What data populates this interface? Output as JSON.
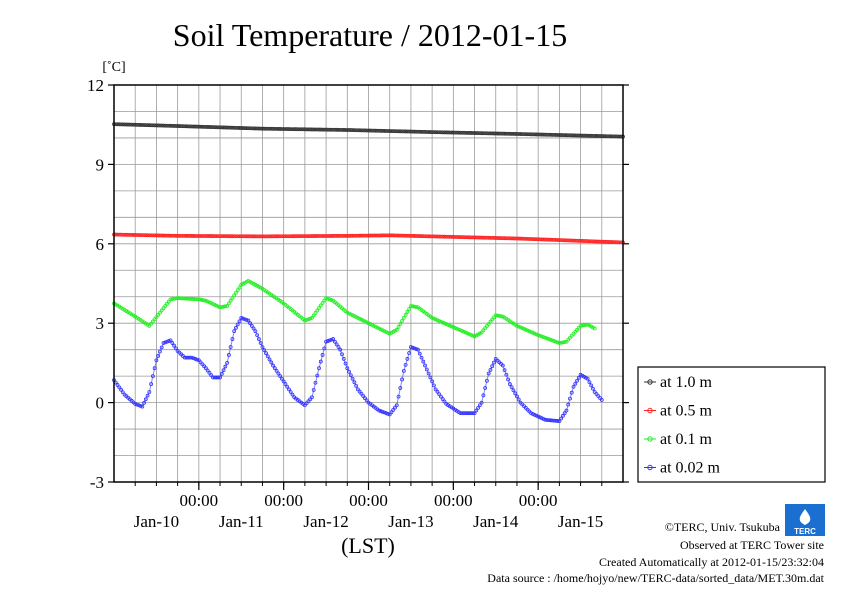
{
  "chart_data": {
    "type": "line",
    "title": "Soil Temperature / 2012-01-15",
    "ylabel": "[˚C]",
    "xlabel": "(LST)",
    "ylim": [
      -3,
      12
    ],
    "yticks": [
      -3,
      0,
      3,
      6,
      9,
      12
    ],
    "ytick_labels": [
      "-3",
      "0",
      "3",
      "6",
      "9",
      "12"
    ],
    "x_unit": "hours since Jan-09 00:00",
    "xlim": [
      12,
      156
    ],
    "x_ticks": [
      {
        "x": 36,
        "time_label": "00:00",
        "date_label": "Jan-10"
      },
      {
        "x": 60,
        "time_label": "00:00",
        "date_label": "Jan-11"
      },
      {
        "x": 84,
        "time_label": "00:00",
        "date_label": "Jan-12"
      },
      {
        "x": 108,
        "time_label": "00:00",
        "date_label": "Jan-13"
      },
      {
        "x": 132,
        "time_label": "00:00",
        "date_label": "Jan-14"
      },
      {
        "x": 156,
        "time_label": "",
        "date_label": "Jan-15"
      }
    ],
    "grid": true,
    "legend_position": "right",
    "series": [
      {
        "name": "at 1.0 m",
        "color": "#333333",
        "points": [
          [
            12,
            10.52
          ],
          [
            30,
            10.45
          ],
          [
            54,
            10.35
          ],
          [
            78,
            10.3
          ],
          [
            102,
            10.22
          ],
          [
            126,
            10.15
          ],
          [
            156,
            10.05
          ]
        ]
      },
      {
        "name": "at 0.5 m",
        "color": "#ff2222",
        "points": [
          [
            12,
            6.35
          ],
          [
            30,
            6.3
          ],
          [
            54,
            6.28
          ],
          [
            78,
            6.3
          ],
          [
            90,
            6.32
          ],
          [
            102,
            6.28
          ],
          [
            126,
            6.2
          ],
          [
            156,
            6.05
          ]
        ]
      },
      {
        "name": "at 0.1 m",
        "color": "#22ee22",
        "points": [
          [
            12,
            3.75
          ],
          [
            18,
            3.25
          ],
          [
            22,
            2.9
          ],
          [
            28,
            3.9
          ],
          [
            30,
            3.95
          ],
          [
            36,
            3.9
          ],
          [
            38,
            3.85
          ],
          [
            42,
            3.6
          ],
          [
            44,
            3.65
          ],
          [
            48,
            4.45
          ],
          [
            50,
            4.6
          ],
          [
            54,
            4.3
          ],
          [
            60,
            3.75
          ],
          [
            66,
            3.1
          ],
          [
            68,
            3.2
          ],
          [
            72,
            3.95
          ],
          [
            74,
            3.85
          ],
          [
            78,
            3.4
          ],
          [
            84,
            3.0
          ],
          [
            90,
            2.6
          ],
          [
            92,
            2.75
          ],
          [
            96,
            3.65
          ],
          [
            98,
            3.6
          ],
          [
            102,
            3.2
          ],
          [
            108,
            2.85
          ],
          [
            114,
            2.5
          ],
          [
            116,
            2.65
          ],
          [
            120,
            3.3
          ],
          [
            122,
            3.25
          ],
          [
            126,
            2.9
          ],
          [
            132,
            2.55
          ],
          [
            138,
            2.25
          ],
          [
            140,
            2.3
          ],
          [
            144,
            2.9
          ],
          [
            146,
            2.95
          ],
          [
            148,
            2.8
          ]
        ]
      },
      {
        "name": "at 0.02 m",
        "color": "#3333ff",
        "points": [
          [
            12,
            0.85
          ],
          [
            15,
            0.3
          ],
          [
            18,
            -0.05
          ],
          [
            20,
            -0.15
          ],
          [
            22,
            0.4
          ],
          [
            24,
            1.6
          ],
          [
            26,
            2.25
          ],
          [
            28,
            2.35
          ],
          [
            30,
            1.95
          ],
          [
            32,
            1.7
          ],
          [
            34,
            1.7
          ],
          [
            36,
            1.6
          ],
          [
            38,
            1.3
          ],
          [
            40,
            0.95
          ],
          [
            42,
            0.95
          ],
          [
            44,
            1.5
          ],
          [
            46,
            2.7
          ],
          [
            48,
            3.2
          ],
          [
            50,
            3.1
          ],
          [
            52,
            2.7
          ],
          [
            54,
            2.1
          ],
          [
            57,
            1.4
          ],
          [
            60,
            0.8
          ],
          [
            63,
            0.2
          ],
          [
            66,
            -0.1
          ],
          [
            68,
            0.2
          ],
          [
            70,
            1.3
          ],
          [
            72,
            2.3
          ],
          [
            74,
            2.4
          ],
          [
            76,
            2.0
          ],
          [
            78,
            1.3
          ],
          [
            81,
            0.5
          ],
          [
            84,
            0.0
          ],
          [
            87,
            -0.3
          ],
          [
            90,
            -0.45
          ],
          [
            92,
            -0.1
          ],
          [
            94,
            1.2
          ],
          [
            96,
            2.1
          ],
          [
            98,
            2.0
          ],
          [
            100,
            1.4
          ],
          [
            103,
            0.5
          ],
          [
            106,
            -0.05
          ],
          [
            110,
            -0.4
          ],
          [
            114,
            -0.4
          ],
          [
            116,
            0.0
          ],
          [
            118,
            1.1
          ],
          [
            120,
            1.65
          ],
          [
            122,
            1.4
          ],
          [
            124,
            0.7
          ],
          [
            127,
            0.0
          ],
          [
            130,
            -0.4
          ],
          [
            134,
            -0.65
          ],
          [
            138,
            -0.7
          ],
          [
            140,
            -0.3
          ],
          [
            142,
            0.6
          ],
          [
            144,
            1.05
          ],
          [
            146,
            0.9
          ],
          [
            148,
            0.4
          ],
          [
            150,
            0.1
          ]
        ]
      }
    ]
  },
  "footer": {
    "credit": "©TERC, Univ. Tsukuba",
    "observed": "Observed at TERC Tower site",
    "created": "Created Automatically at 2012-01-15/23:32:04",
    "source": "Data source : /home/hojyo/new/TERC-data/sorted_data/MET.30m.dat",
    "logo_text": "TERC"
  }
}
